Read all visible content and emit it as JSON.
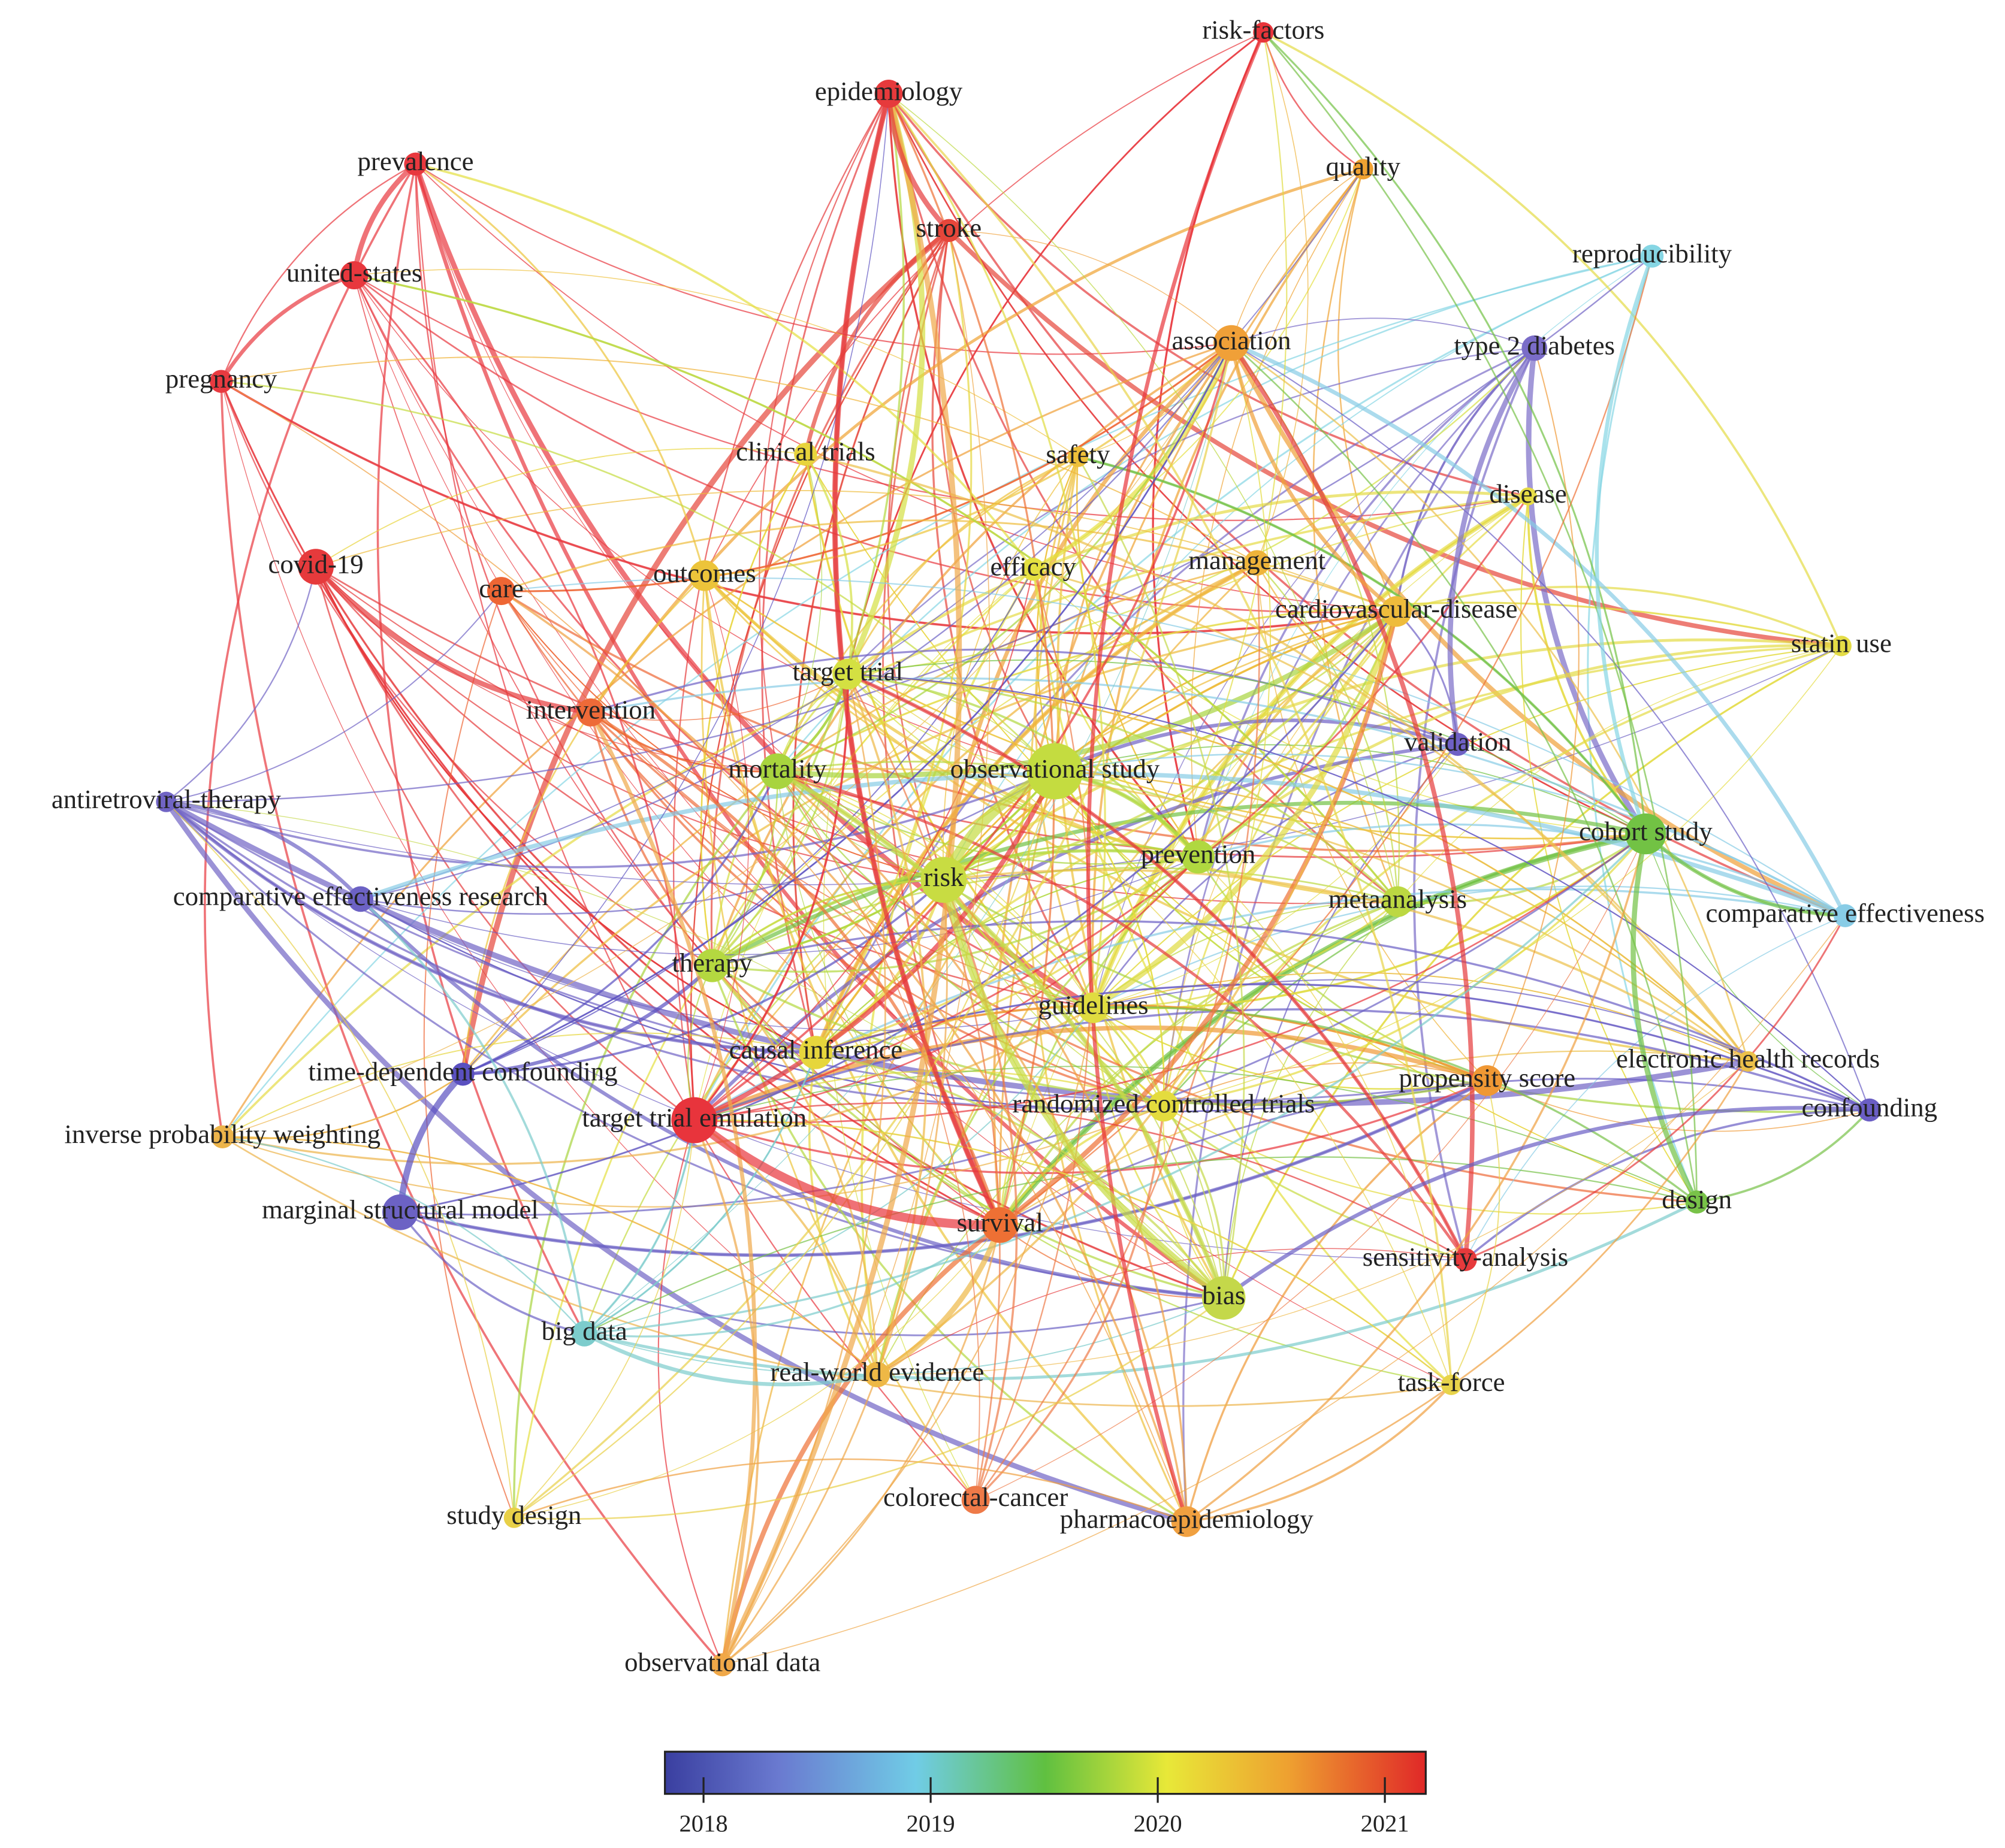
{
  "nodes": [
    {
      "label": "risk-factors",
      "color": "#e8343a"
    },
    {
      "label": "epidemiology",
      "color": "#e63a3c"
    },
    {
      "label": "prevalence",
      "color": "#e8383e"
    },
    {
      "label": "united-states",
      "color": "#e8383e"
    },
    {
      "label": "pregnancy",
      "color": "#e83a40"
    },
    {
      "label": "stroke",
      "color": "#e6463a"
    },
    {
      "label": "quality",
      "color": "#f0a232"
    },
    {
      "label": "reproducibility",
      "color": "#86d6e4"
    },
    {
      "label": "type 2 diabetes",
      "color": "#7a6cc8"
    },
    {
      "label": "association",
      "color": "#f0a038"
    },
    {
      "label": "clinical trials",
      "color": "#e8d43c"
    },
    {
      "label": "safety",
      "color": "#eec03a"
    },
    {
      "label": "disease",
      "color": "#e6dc46"
    },
    {
      "label": "covid-19",
      "color": "#e63a3c"
    },
    {
      "label": "care",
      "color": "#ee6634"
    },
    {
      "label": "outcomes",
      "color": "#ecc43a"
    },
    {
      "label": "efficacy",
      "color": "#e4e040"
    },
    {
      "label": "management",
      "color": "#efb43a"
    },
    {
      "label": "cardiovascular-disease",
      "color": "#eebc3c"
    },
    {
      "label": "statin use",
      "color": "#e4dc46"
    },
    {
      "label": "target trial",
      "color": "#d4e042"
    },
    {
      "label": "intervention",
      "color": "#ee6a38"
    },
    {
      "label": "validation",
      "color": "#6e60c4"
    },
    {
      "label": "mortality",
      "color": "#a8d43e"
    },
    {
      "label": "observational study",
      "color": "#c4dc40"
    },
    {
      "label": "antiretroviral-therapy",
      "color": "#7064c4"
    },
    {
      "label": "cohort study",
      "color": "#72c244"
    },
    {
      "label": "prevention",
      "color": "#b0d840"
    },
    {
      "label": "risk",
      "color": "#c8dc42"
    },
    {
      "label": "comparative effectiveness research",
      "color": "#6c62c4"
    },
    {
      "label": "metaanalysis",
      "color": "#bcd842"
    },
    {
      "label": "comparative effectiveness",
      "color": "#88cce6"
    },
    {
      "label": "therapy",
      "color": "#b4d840"
    },
    {
      "label": "guidelines",
      "color": "#e0dc40"
    },
    {
      "label": "causal inference",
      "color": "#e6d63c"
    },
    {
      "label": "electronic health records",
      "color": "#ecc04a"
    },
    {
      "label": "time-dependent confounding",
      "color": "#5a50c0"
    },
    {
      "label": "propensity score",
      "color": "#f09834"
    },
    {
      "label": "target trial emulation",
      "color": "#e8343c"
    },
    {
      "label": "randomized controlled trials",
      "color": "#e4dc3e"
    },
    {
      "label": "confounding",
      "color": "#6a5ec4"
    },
    {
      "label": "inverse probability weighting",
      "color": "#ecb44a"
    },
    {
      "label": "marginal structural model",
      "color": "#6c62c4"
    },
    {
      "label": "design",
      "color": "#78c248"
    },
    {
      "label": "survival",
      "color": "#ee7034"
    },
    {
      "label": "sensitivity-analysis",
      "color": "#e63a3c"
    },
    {
      "label": "bias",
      "color": "#c4d84a"
    },
    {
      "label": "big data",
      "color": "#7ccccc"
    },
    {
      "label": "real-world evidence",
      "color": "#eeb846"
    },
    {
      "label": "task-force",
      "color": "#e8d44a"
    },
    {
      "label": "colorectal-cancer",
      "color": "#ee7a48"
    },
    {
      "label": "pharmacoepidemiology",
      "color": "#f0a040"
    },
    {
      "label": "study design",
      "color": "#e8d048"
    },
    {
      "label": "observational data",
      "color": "#f0a848"
    }
  ],
  "colorbar": {
    "range": [
      2017.83,
      2021.18
    ],
    "ticks": [
      2018,
      2019,
      2020,
      2021
    ]
  }
}
